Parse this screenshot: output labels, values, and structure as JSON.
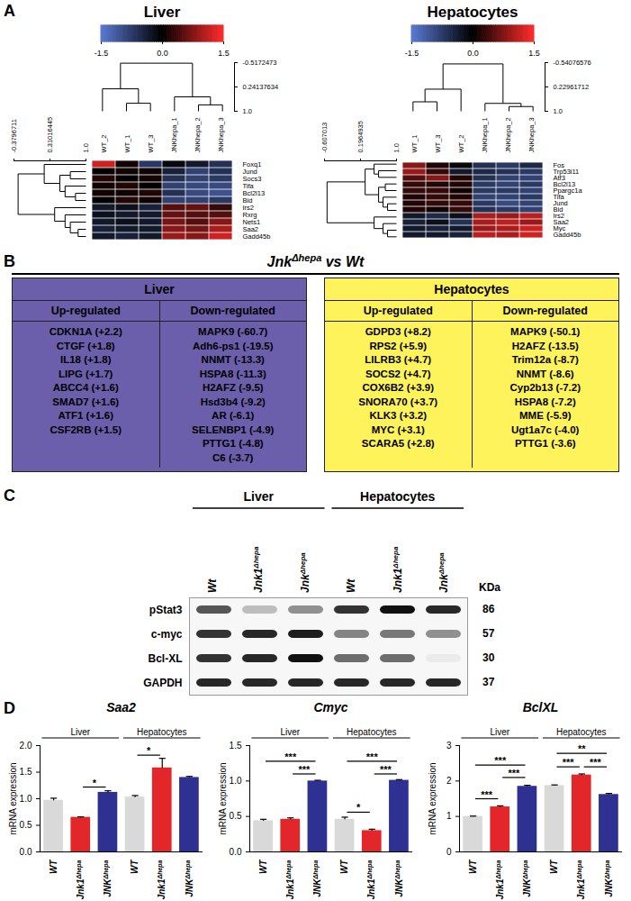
{
  "panel_labels": [
    "A",
    "B",
    "C",
    "D"
  ],
  "heatmaps": [
    {
      "title": "Liver",
      "colorbar": {
        "range": [
          -1.5,
          1.5
        ],
        "ticks": [
          -1.5,
          {
            "value": 0,
            "label": "0.0"
          },
          1.5
        ],
        "colors": [
          "#5b7bd5",
          "#000000",
          "#ff2b2b"
        ]
      },
      "samples": [
        "WT_2",
        "WT_1",
        "WT_3",
        "JNKhepa_1",
        "JNKhepa_2",
        "JNKhepa_3"
      ],
      "genes": [
        "Foxq1",
        "Jund",
        "Socs3",
        "Tifa",
        "Bcl2l13",
        "Bid",
        "Irs2",
        "Rxrg",
        "Nets1",
        "Saa2",
        "Gadd45b"
      ],
      "values": [
        [
          1.2,
          0.1,
          -0.7,
          -0.1,
          -0.3,
          -0.6
        ],
        [
          0.0,
          0.1,
          0.1,
          -0.4,
          -0.8,
          -0.6
        ],
        [
          0.2,
          0.0,
          0.1,
          -0.6,
          -0.8,
          -0.7
        ],
        [
          0.1,
          0.2,
          0.0,
          -0.8,
          -0.9,
          -0.9
        ],
        [
          0.1,
          0.1,
          0.2,
          -0.6,
          -0.9,
          -1.0
        ],
        [
          0.0,
          0.2,
          0.1,
          -0.8,
          -0.8,
          -0.7
        ],
        [
          -0.3,
          -0.2,
          -0.4,
          0.5,
          0.6,
          0.3
        ],
        [
          -0.2,
          -0.3,
          -0.3,
          0.6,
          0.5,
          0.5
        ],
        [
          -0.3,
          -0.2,
          -0.3,
          0.7,
          0.5,
          0.8
        ],
        [
          -0.4,
          -0.3,
          -0.3,
          0.8,
          0.7,
          1.0
        ],
        [
          -0.3,
          -0.4,
          -0.3,
          0.9,
          0.8,
          1.2
        ]
      ],
      "column_dendrogram": {
        "ylim": [
          -0.5172473,
          1
        ],
        "yticks": [
          -0.5172473,
          0.24137634,
          {
            "value": 1,
            "label": "1.0"
          }
        ],
        "tree": {
          "height": -0.5,
          "children": [
            {
              "height": 0.3,
              "children": [
                0,
                {
                  "height": 0.75,
                  "children": [
                    1,
                    2
                  ]
                }
              ]
            },
            {
              "height": 0.55,
              "children": [
                3,
                {
                  "height": 0.8,
                  "children": [
                    4,
                    5
                  ]
                }
              ]
            }
          ]
        }
      },
      "row_dendrogram": {
        "xlim": [
          -0.3796711,
          1
        ],
        "xticks": [
          -0.3796711,
          0.31016445,
          {
            "value": 1,
            "label": "1.0"
          }
        ],
        "tree": {
          "height": -0.3,
          "children": [
            {
              "height": 0.2,
              "children": [
                0,
                {
                  "height": 0.5,
                  "children": [
                    {
                      "height": 0.7,
                      "children": [
                        1,
                        2
                      ]
                    },
                    {
                      "height": 0.6,
                      "children": [
                        3,
                        {
                          "height": 0.8,
                          "children": [
                            4,
                            5
                          ]
                        }
                      ]
                    }
                  ]
                }
              ]
            },
            {
              "height": 0.4,
              "children": [
                6,
                {
                  "height": 0.6,
                  "children": [
                    7,
                    {
                      "height": 0.7,
                      "children": [
                        8,
                        {
                          "height": 0.85,
                          "children": [
                            9,
                            10
                          ]
                        }
                      ]
                    }
                  ]
                }
              ]
            }
          ]
        }
      }
    },
    {
      "title": "Hepatocytes",
      "colorbar": {
        "range": [
          -1.5,
          1.5
        ],
        "ticks": [
          -1.5,
          {
            "value": 0,
            "label": "0.0"
          },
          1.5
        ],
        "colors": [
          "#5b7bd5",
          "#000000",
          "#ff2b2b"
        ]
      },
      "samples": [
        "WT_1",
        "WT_3",
        "WT_2",
        "JNKhepa_1",
        "JNKhepa_2",
        "JNKhepa_3"
      ],
      "genes": [
        "Fos",
        "Trp53i11",
        "Atf3",
        "Bcl2l13",
        "Ppargc1a",
        "Tifa",
        "Jund",
        "Bid",
        "Irs2",
        "Saa2",
        "Myc",
        "Gadd45b"
      ],
      "values": [
        [
          0.8,
          0.2,
          -0.1,
          -0.6,
          -0.7,
          -0.5
        ],
        [
          0.9,
          0.3,
          -0.3,
          -0.5,
          -0.6,
          -0.7
        ],
        [
          0.5,
          0.8,
          0.2,
          -0.6,
          -0.8,
          -0.8
        ],
        [
          0.3,
          0.2,
          0.2,
          -0.7,
          -0.8,
          -0.7
        ],
        [
          0.3,
          0.3,
          0.1,
          -0.7,
          -0.7,
          -0.8
        ],
        [
          0.2,
          0.3,
          0.2,
          -0.8,
          -0.8,
          -0.7
        ],
        [
          0.2,
          0.3,
          0.3,
          -0.7,
          -0.9,
          -0.8
        ],
        [
          0.2,
          0.1,
          0.3,
          -0.6,
          -0.7,
          -0.8
        ],
        [
          -0.3,
          -0.5,
          -0.2,
          1.0,
          0.9,
          1.1
        ],
        [
          -0.4,
          -0.2,
          -0.6,
          1.0,
          1.1,
          0.9
        ],
        [
          -0.3,
          -0.4,
          -0.3,
          0.9,
          1.0,
          1.2
        ],
        [
          -0.3,
          -0.3,
          -0.4,
          1.1,
          1.0,
          1.2
        ]
      ],
      "column_dendrogram": {
        "ylim": [
          -0.54076576,
          1
        ],
        "yticks": [
          -0.54076576,
          0.22961712,
          {
            "value": 1,
            "label": "1.0"
          }
        ],
        "tree": {
          "height": -0.5,
          "children": [
            {
              "height": 0.3,
              "children": [
                {
                  "height": 0.7,
                  "children": [
                    0,
                    1
                  ]
                },
                2
              ]
            },
            {
              "height": 0.75,
              "children": [
                3,
                {
                  "height": 0.85,
                  "children": [
                    4,
                    5
                  ]
                }
              ]
            }
          ]
        }
      },
      "row_dendrogram": {
        "xlim": [
          -0.607013,
          1
        ],
        "xticks": [
          -0.607013,
          0.1964935,
          {
            "value": 1,
            "label": "1.0"
          }
        ],
        "tree": {
          "height": -0.55,
          "children": [
            {
              "height": 0.3,
              "children": [
                {
                  "height": 0.5,
                  "children": [
                    0,
                    {
                      "height": 0.6,
                      "children": [
                        1,
                        2
                      ]
                    }
                  ]
                },
                {
                  "height": 0.6,
                  "children": [
                    {
                      "height": 0.75,
                      "children": [
                        3,
                        4
                      ]
                    },
                    {
                      "height": 0.7,
                      "children": [
                        5,
                        {
                          "height": 0.8,
                          "children": [
                            6,
                            7
                          ]
                        }
                      ]
                    }
                  ]
                }
              ]
            },
            {
              "height": 0.5,
              "children": [
                8,
                {
                  "height": 0.7,
                  "children": [
                    9,
                    {
                      "height": 0.8,
                      "children": [
                        10,
                        11
                      ]
                    }
                  ]
                }
              ]
            }
          ]
        }
      }
    }
  ],
  "tables": {
    "title": {
      "base": "Jnk",
      "sup": "Δhepa",
      "rest": "vs Wt"
    },
    "panels": [
      {
        "title": "Liver",
        "color": "#6b5fab",
        "columns": [
          {
            "header": "Up-regulated",
            "items": [
              "CDKN1A (+2.2)",
              "CTGF (+1.8)",
              "IL18 (+1.8)",
              "LIPG (+1.7)",
              "ABCC4 (+1.6)",
              "SMAD7 (+1.6)",
              "ATF1 (+1.6)",
              "CSF2RB (+1.5)"
            ]
          },
          {
            "header": "Down-regulated",
            "items": [
              "MAPK9 (-60.7)",
              "Adh6-ps1 (-19.5)",
              "NNMT (-13.3)",
              "HSPA8 (-11.3)",
              "H2AFZ (-9.5)",
              "Hsd3b4 (-9.2)",
              "AR (-6.1)",
              "SELENBP1 (-4.9)",
              "PTTG1 (-4.8)",
              "C6 (-3.7)"
            ]
          }
        ]
      },
      {
        "title": "Hepatocytes",
        "color": "#fff35c",
        "columns": [
          {
            "header": "Up-regulated",
            "items": [
              "GDPD3 (+8.2)",
              "RPS2 (+5.9)",
              "LILRB3 (+4.7)",
              "SOCS2 (+4.7)",
              "COX6B2 (+3.9)",
              "SNORA70 (+3.7)",
              "KLK3 (+3.2)",
              "MYC (+3.1)",
              "SCARA5 (+2.8)"
            ]
          },
          {
            "header": "Down-regulated",
            "items": [
              "MAPK9 (-50.1)",
              "H2AFZ (-13.5)",
              "Trim12a (-8.7)",
              "NNMT (-8.6)",
              "Cyp2b13 (-7.2)",
              "HSPA8 (-7.2)",
              "MME (-5.9)",
              "Ugt1a7c (-4.0)",
              "PTTG1 (-3.6)"
            ]
          }
        ]
      }
    ]
  },
  "blot": {
    "groups": [
      "Liver",
      "Liver",
      "Liver",
      "Hepatocytes",
      "Hepatocytes",
      "Hepatocytes"
    ],
    "lanes": [
      {
        "base": "Wt"
      },
      {
        "base": "Jnk1",
        "sup": "Δhepa"
      },
      {
        "base": "Jnk",
        "sup": "Δhepa"
      },
      {
        "base": "Wt"
      },
      {
        "base": "Jnk1",
        "sup": "Δhepa"
      },
      {
        "base": "Jnk",
        "sup": "Δhepa"
      }
    ],
    "proteins": [
      "pStat3",
      "c-myc",
      "Bcl-XL",
      "GAPDH"
    ],
    "kda_header": "KDa",
    "kda": [
      86,
      57,
      30,
      37
    ],
    "intensity": [
      [
        0.7,
        0.25,
        0.45,
        0.85,
        1.0,
        0.9
      ],
      [
        0.85,
        0.9,
        0.95,
        0.5,
        0.55,
        0.45
      ],
      [
        0.85,
        0.9,
        1.0,
        0.6,
        0.6,
        0.05
      ],
      [
        0.9,
        0.9,
        0.9,
        0.9,
        0.9,
        0.9
      ]
    ]
  },
  "chart_data": [
    {
      "type": "bar",
      "title": "Saa2",
      "ylabel": "mRNA expression",
      "categories": [
        {
          "base": "WT"
        },
        {
          "base": "Jnk1",
          "sup": "Δhepa"
        },
        {
          "base": "JNK",
          "sup": "Δhepa"
        },
        {
          "base": "WT"
        },
        {
          "base": "Jnk1",
          "sup": "Δhepa"
        },
        {
          "base": "JNK",
          "sup": "Δhepa"
        }
      ],
      "groups": [
        "Liver",
        "Liver",
        "Liver",
        "Hepatocytes",
        "Hepatocytes",
        "Hepatocytes"
      ],
      "colors": [
        "#d9d9d9",
        "#e3262a",
        "#2e3192",
        "#d9d9d9",
        "#e3262a",
        "#2e3192"
      ],
      "values": [
        0.97,
        0.65,
        1.12,
        1.03,
        1.58,
        1.4
      ],
      "errors": [
        0.04,
        0.01,
        0.03,
        0.03,
        0.18,
        0.02
      ],
      "significance": [
        {
          "from": 1,
          "to": 2,
          "y": 1.22,
          "label": "*"
        },
        {
          "from": 3,
          "to": 4,
          "y": 1.82,
          "label": "*"
        }
      ],
      "ylim": [
        0,
        2
      ],
      "yticks": [
        {
          "value": 0,
          "label": "0.0"
        },
        0.5,
        {
          "value": 1,
          "label": "1.0"
        },
        1.5,
        {
          "value": 2,
          "label": "2.0"
        }
      ]
    },
    {
      "type": "bar",
      "title": "Cmyc",
      "ylabel": "mRNA expression",
      "categories": [
        {
          "base": "WT"
        },
        {
          "base": "Jnk1",
          "sup": "Δhepa"
        },
        {
          "base": "JNK",
          "sup": "Δhepa"
        },
        {
          "base": "WT"
        },
        {
          "base": "Jnk1",
          "sup": "Δhepa"
        },
        {
          "base": "JNK",
          "sup": "Δhepa"
        }
      ],
      "groups": [
        "Liver",
        "Liver",
        "Liver",
        "Hepatocytes",
        "Hepatocytes",
        "Hepatocytes"
      ],
      "colors": [
        "#d9d9d9",
        "#e3262a",
        "#2e3192",
        "#d9d9d9",
        "#e3262a",
        "#2e3192"
      ],
      "values": [
        0.44,
        0.46,
        1.0,
        0.46,
        0.3,
        1.01
      ],
      "errors": [
        0.02,
        0.02,
        0.01,
        0.03,
        0.02,
        0.01
      ],
      "significance": [
        {
          "from": 0,
          "to": 2,
          "y": 1.28,
          "label": "***"
        },
        {
          "from": 1,
          "to": 2,
          "y": 1.1,
          "label": "***"
        },
        {
          "from": 3,
          "to": 4,
          "y": 0.56,
          "label": "*"
        },
        {
          "from": 3,
          "to": 5,
          "y": 1.28,
          "label": "***"
        },
        {
          "from": 4,
          "to": 5,
          "y": 1.1,
          "label": "***"
        }
      ],
      "ylim": [
        0,
        1.5
      ],
      "yticks": [
        {
          "value": 0,
          "label": "0.0"
        },
        0.5,
        {
          "value": 1,
          "label": "1.0"
        },
        1.5
      ]
    },
    {
      "type": "bar",
      "title": "BclXL",
      "ylabel": "mRNA expression",
      "categories": [
        {
          "base": "WT"
        },
        {
          "base": "Jnk1",
          "sup": "Δhepa"
        },
        {
          "base": "JNK",
          "sup": "Δhepa"
        },
        {
          "base": "WT"
        },
        {
          "base": "Jnk1",
          "sup": "Δhepa"
        },
        {
          "base": "JNK",
          "sup": "Δhepa"
        }
      ],
      "groups": [
        "Liver",
        "Liver",
        "Liver",
        "Hepatocytes",
        "Hepatocytes",
        "Hepatocytes"
      ],
      "colors": [
        "#d9d9d9",
        "#e3262a",
        "#2e3192",
        "#d9d9d9",
        "#e3262a",
        "#2e3192"
      ],
      "values": [
        1.0,
        1.27,
        1.85,
        1.87,
        2.17,
        1.62
      ],
      "errors": [
        0.01,
        0.03,
        0.03,
        0.02,
        0.03,
        0.03
      ],
      "significance": [
        {
          "from": 0,
          "to": 1,
          "y": 1.5,
          "label": "***"
        },
        {
          "from": 0,
          "to": 2,
          "y": 2.45,
          "label": "***"
        },
        {
          "from": 1,
          "to": 2,
          "y": 2.1,
          "label": "***"
        },
        {
          "from": 3,
          "to": 4,
          "y": 2.4,
          "label": "***"
        },
        {
          "from": 3,
          "to": 5,
          "y": 2.78,
          "label": "**"
        },
        {
          "from": 4,
          "to": 5,
          "y": 2.4,
          "label": "***"
        }
      ],
      "ylim": [
        0,
        3
      ],
      "yticks": [
        0,
        1,
        2,
        3
      ]
    }
  ]
}
